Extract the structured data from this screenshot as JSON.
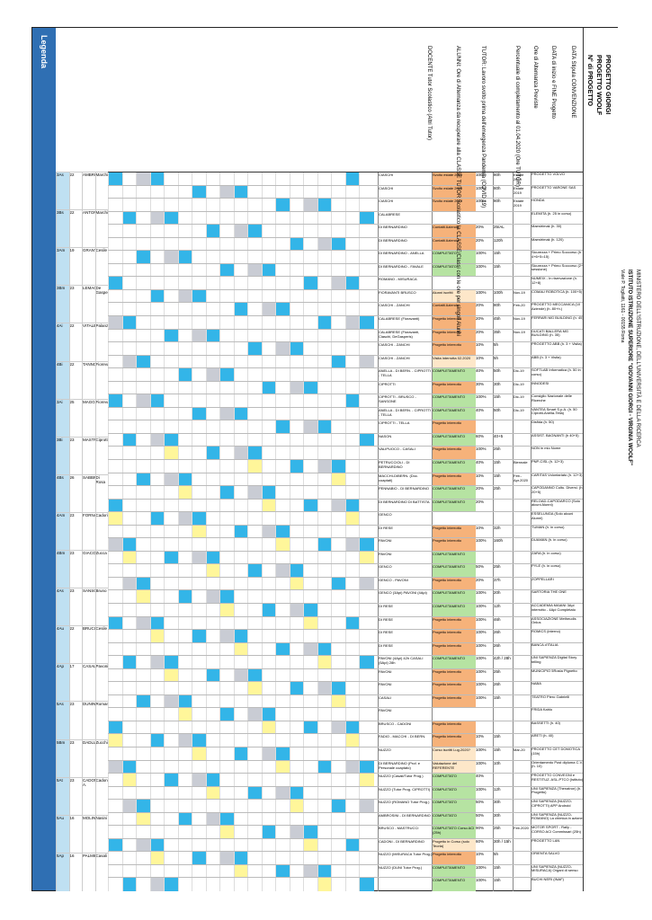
{
  "header": {
    "progetto_giorgi": "PROGETTO GIORGI",
    "progetto_woolf": "PROGETTO WOOLF",
    "n_progetto": "N° di PROGETTO",
    "data_stipula": "DATA Stipula CONVENZIONE",
    "data_inizio_fine": "DATA di inizio e FINE Progetto",
    "ore_previste": "Ore di Alternanza Previste",
    "percentuale": "Percentuale di completamento al 01.04.2020 (Ore TUTOR)",
    "tutor_lavoro": "TUTOR: Lavoro svolto prima dell'emergenza Pandemia (COVID 19)",
    "alunni": "ALUNNI: Ore di Alternanza da recuperare alla CLASSE TUTOR Scolastico la CLASSE/Classi con le ore per singoli Alunni",
    "docente_tutor": "DOCENTE Tutor Scolastico (Altri Tutor)"
  },
  "school": {
    "ministry": "MINISTERO DELL'ISTRUZIONE, DELL'UNIVERSITÀ E DELLA RICERCA",
    "name": "ISTITUTO ISTRUZIONE SUPERIORE \"GIOVANNI GIORGI - VIRGINIA WOOLF\"",
    "address": "Viale P. Togliatti, 1161 - 00155 Roma"
  },
  "legend": {
    "title": "Legenda",
    "items": [
      "= PROGETTO WOOLF",
      "= PROGETTI SETTORE",
      "= PROGETTO VEICOLO",
      "= PROGETTO ELETTR./MEC. informatica",
      "= PROGETTO COMPLETATO e/o IN COMPLETAMENTO",
      "= ORE da recuperare all'Alunno (Riduttivo dei TUTOR)"
    ]
  },
  "notes": {
    "aggiornamenti": "Aggiornamento al 20.05.2020",
    "riferimento": "RIFERENTE ASL PTCO prof. Bernardino DI BERNARDINO",
    "stato": "Stato: ore da recuperare all'Alunno al 05.03.2020"
  },
  "classes": [
    {
      "cls": "3As",
      "n": "22",
      "tutor": "AMBROSINO",
      "ore": "Marchi"
    },
    {
      "cls": "3Bs",
      "n": "22",
      "tutor": "ANTONOVO",
      "ore": "Marchi"
    },
    {
      "cls": "3Am",
      "n": "19",
      "tutor": "GRANTELLA",
      "ore": "Cesile"
    },
    {
      "cls": "3Bm",
      "n": "23",
      "tutor": "LEMAGNO",
      "ore": "De Gasperis"
    },
    {
      "cls": "4Ai",
      "n": "22",
      "tutor": "VITALE",
      "ore": "Palanza"
    },
    {
      "cls": "4Bi",
      "n": "22",
      "tutor": "TANNON",
      "ore": "Fiorevanti"
    },
    {
      "cls": "3Ai",
      "n": "25",
      "tutor": "MAGGI",
      "ore": "Fiorevanti"
    },
    {
      "cls": "3Bi",
      "n": "23",
      "tutor": "MASTRUCCI",
      "ore": "Ciprotti"
    },
    {
      "cls": "4Bs",
      "n": "26",
      "tutor": "SABBIU",
      "ore": "Di Rosa"
    },
    {
      "cls": "4Am",
      "n": "23",
      "tutor": "FORNABI",
      "ore": "Cadori"
    },
    {
      "cls": "4Bm",
      "n": "23",
      "tutor": "GIACOBBI",
      "ore": "Zucca"
    },
    {
      "cls": "4As",
      "n": "23",
      "tutor": "SANSONE",
      "ore": "Bruno"
    },
    {
      "cls": "4Au",
      "n": "22",
      "tutor": "BRUCCO",
      "ore": "Cesile"
    },
    {
      "cls": "4Ap",
      "n": "17",
      "tutor": "CASALI",
      "ore": "Pavoni"
    },
    {
      "cls": "5As",
      "n": "23",
      "tutor": "DUNIN",
      "ore": "Romano"
    },
    {
      "cls": "5Bm",
      "n": "23",
      "tutor": "DADLIANNO",
      "ore": "Zucchi"
    },
    {
      "cls": "5At",
      "n": "23",
      "tutor": "CADONI A.",
      "ore": "Cadoni"
    },
    {
      "cls": "5Au",
      "n": "16",
      "tutor": "MOLINARI",
      "ore": "Nasini"
    },
    {
      "cls": "5Ap",
      "n": "16",
      "tutor": "PALMIERO",
      "ore": "Casali"
    }
  ],
  "projects": [
    {
      "num": "63",
      "name": "PROGETTO VOLVO",
      "tutor": "CIASCHI",
      "stato": "Svolto estate 2019",
      "pct": "100%",
      "ore": "80h",
      "date": "Estate 2019"
    },
    {
      "num": "64",
      "name": "PROGETTO VARONE SAS",
      "tutor": "CIASCHI",
      "stato": "Svolto estate 2019",
      "pct": "100%",
      "ore": "80h",
      "date": "Estate 2019"
    },
    {
      "num": "65",
      "name": "HONDA",
      "tutor": "CIASCHI",
      "stato": "Svolto estate 2019",
      "pct": "100%",
      "ore": "80h",
      "date": "Estate 2019"
    },
    {
      "num": "1",
      "name": "ELEMITA (h. 25 in corso)",
      "tutor": "CALABRESE",
      "stato": "",
      "pct": "",
      "ore": "",
      "date": ""
    },
    {
      "num": "2",
      "name": "Maestrimak (h. 30)",
      "tutor": "DI BERNARDINO",
      "stato": "Contatti Azienda",
      "pct": "20%",
      "ore": "25/AL",
      "date": ""
    },
    {
      "num": "2a",
      "name": "Maestrimak (h. 120)",
      "tutor": "DI BERNARDINO",
      "stato": "Contatti Azienda",
      "pct": "20%",
      "ore": "120h",
      "date": ""
    },
    {
      "num": "3",
      "name": "Sicurezza + Primo Soccorso (h. 4+6+5=15)",
      "tutor": "DI BERNARDINO - ANELLA",
      "stato": "COMPLETATO",
      "pct": "100%",
      "ore": "15h",
      "date": ""
    },
    {
      "num": "3a",
      "name": "Sicurezza + Primo Soccorso (2^ sessione)",
      "tutor": "DI BERNARDINO - FAVALE",
      "stato": "COMPLETATO",
      "pct": "100%",
      "ore": "15h",
      "date": ""
    },
    {
      "num": "4",
      "name": "NUMEIX - In riservazione (h. 12+8)",
      "tutor": "ROMANO - MISURACA",
      "stato": "",
      "pct": "",
      "ore": "",
      "date": ""
    },
    {
      "num": "5",
      "name": "COMAU ROBOTICA (h. 100+5)",
      "tutor": "FIORAVANTI BRUSCO",
      "stato": "Alunni iscritti",
      "pct": "100%",
      "ore": "100h",
      "date": "Nov-19"
    },
    {
      "num": "6",
      "name": "PROGETTO MECCANICA (10 Aziende) (h. 80+h.)",
      "tutor": "CIASCHI - ZANCHI",
      "stato": "Contatti Azienda",
      "pct": "20%",
      "ore": "80h",
      "date": "Feb-20"
    },
    {
      "num": "7",
      "name": "FERRARI MG BUILDING (h. 45)",
      "tutor": "CALABRESE (Fioravanti)",
      "stato": "Progetto interrotto",
      "pct": "20%",
      "ore": "45h",
      "date": "Nov-19"
    },
    {
      "num": "8",
      "name": "DUCATI BALLERA MG BUILDING (h. 35)",
      "tutor": "CALABRESE (Fioravanti, Ciaschi, DeGasperis)",
      "stato": "Progetto interrotto",
      "pct": "20%",
      "ore": "35h",
      "date": "Nov-19"
    },
    {
      "num": "9",
      "name": "PROGETTO ABB (h. 3 + Visita)",
      "tutor": "CIASCHI - ZANCHI",
      "stato": "Progetto interrotto",
      "pct": "10%",
      "ore": "5h",
      "date": ""
    },
    {
      "num": "10",
      "name": "ABB (h. 3 + Visita)",
      "tutor": "CIASCHI - ZANCHI",
      "stato": "Visita interrotta 02.2020",
      "pct": "10%",
      "ore": "5h",
      "date": ""
    },
    {
      "num": "11",
      "name": "SOFTLAB Informatica (h. 50 in corso)",
      "tutor": "ANELLA - DI BERN. - CIPROTTI - TELLA",
      "stato": "COMPLETAMENTO",
      "pct": "40%",
      "ore": "50h",
      "date": "Dic-19"
    },
    {
      "num": "12",
      "name": "INNODESI",
      "tutor": "CIPROTTI",
      "stato": "Progetto interrotto",
      "pct": "30%",
      "ore": "30h",
      "date": "Dic-19"
    },
    {
      "num": "13",
      "name": "Consiglio Nazionale delle Ricerche",
      "tutor": "CIPROTTI - BRUSCO - SANSONE",
      "stato": "COMPLETAMENTO",
      "pct": "100%",
      "ore": "15h",
      "date": "Dic-19"
    },
    {
      "num": "14",
      "name": "VANTEA Smart S.p.A. (h. 50 Ciprotti-Anella-Tella)",
      "tutor": "ANELLA - DI BERN. - CIPROTTI - TELLA",
      "stato": "COMPLETAMENTO",
      "pct": "40%",
      "ore": "50h",
      "date": "Dic-19"
    },
    {
      "num": "15",
      "name": "Disfida (h. 50)",
      "tutor": "CIPROTTI - TELLA",
      "stato": "Progetto interrotto",
      "pct": "",
      "ore": "",
      "date": ""
    },
    {
      "num": "16",
      "name": "ASSIST. BAGNANTI (h 40+5)",
      "tutor": "NASON",
      "stato": "COMPLETAMENTO",
      "pct": "60%",
      "ore": "40+5",
      "date": ""
    },
    {
      "num": "17",
      "name": "NON in mio Nome",
      "tutor": "VALIPUOCO - CASALI",
      "stato": "Progetto interrotto",
      "pct": "100%",
      "ore": "25h",
      "date": ""
    },
    {
      "num": "18",
      "name": "PNP-CISL (h. 12+3)",
      "tutor": "PETRUCCIOLI - DI BERNARDINO",
      "stato": "COMPLETAMENTO",
      "pct": "40%",
      "ore": "15h",
      "date": "Biennale"
    },
    {
      "num": "19",
      "name": "CARITAS Volontariato (h. 12+3)",
      "tutor": "MACCHI-DIBERN. (Doc. coaptati)",
      "stato": "Progetto interrotto",
      "pct": "10%",
      "ore": "15h",
      "date": "Feb.-Apr.2020"
    },
    {
      "num": "20",
      "name": "CAPODANNO Cultu. Diversi. (h. 20+5)",
      "tutor": "PENNABIO - DI BERNARDINO",
      "stato": "COMPLETAMENTO",
      "pct": "20%",
      "ore": "25h",
      "date": ""
    },
    {
      "num": "21",
      "name": "RELOAD-CAPODARCO (Solo alcuni Alunni)",
      "tutor": "DI BERNARDINO DI BATTISTA",
      "stato": "COMPLETAMENTO",
      "pct": "20%",
      "ore": "",
      "date": ""
    },
    {
      "num": "22",
      "name": "ESSELUNGA (Solo alcuni Alunni)",
      "tutor": "GENCO",
      "stato": "",
      "pct": "",
      "ore": "",
      "date": ""
    },
    {
      "num": "23",
      "name": "TUMAN (h. in corso)",
      "tutor": "DI RESE",
      "stato": "Progetto interrotto",
      "pct": "10%",
      "ore": "32h",
      "date": ""
    },
    {
      "num": "24",
      "name": "DUAMAN (h. in corso)",
      "tutor": "PAVONI",
      "stato": "Progetto interrotto",
      "pct": "100%",
      "ore": "160h",
      "date": ""
    },
    {
      "num": "25",
      "name": "ZARA (h. in corso)",
      "tutor": "PAVONI",
      "stato": "COMPLETAMENTO",
      "pct": "",
      "ore": "",
      "date": ""
    },
    {
      "num": "26",
      "name": "PYLE (h. in corso)",
      "tutor": "GENCO",
      "stato": "COMPLETAMENTO",
      "pct": "50%",
      "ore": "25h",
      "date": ""
    },
    {
      "num": "27",
      "name": "ZOPPELLARI",
      "tutor": "GENCO - PAVONI",
      "stato": "Progetto interrotto",
      "pct": "20%",
      "ore": "37h",
      "date": ""
    },
    {
      "num": "28",
      "name": "SARTORIA THE ONE",
      "tutor": "GENCO (3Api) PAVONI (4Api)",
      "stato": "COMPLETAMENTO",
      "pct": "100%",
      "ore": "20h",
      "date": ""
    },
    {
      "num": "29",
      "name": "ACCADEMIA MAIANI 3Api interrotto - 4Api Completato",
      "tutor": "DI RESE",
      "stato": "COMPLETAMENTO",
      "pct": "100%",
      "ore": "12h",
      "date": ""
    },
    {
      "num": "30",
      "name": "ASSOCIAZIONE Metheudis Onlus",
      "tutor": "DI RESE",
      "stato": "Progetto interrotto",
      "pct": "100%",
      "ore": "46h",
      "date": ""
    },
    {
      "num": "31",
      "name": "ROMICS (interno)",
      "tutor": "DI RESE",
      "stato": "Progetto interrotto",
      "pct": "100%",
      "ore": "26h",
      "date": ""
    },
    {
      "num": "32",
      "name": "BANCA d'ITALIA",
      "tutor": "DI RESE",
      "stato": "Progetto interrotto",
      "pct": "100%",
      "ore": "26h",
      "date": ""
    },
    {
      "num": "33",
      "name": "UNI SAPIENZA Digital Story telling",
      "tutor": "PAVONI (4Api) 42h CASALI (5Api) 28h",
      "stato": "COMPLETAMENTO",
      "pct": "100%",
      "ore": "42h / 28h",
      "date": ""
    },
    {
      "num": "34",
      "name": "MUNICIPIO 5Rosta Pignetto",
      "tutor": "PAVONI",
      "stato": "Progetto interrotto",
      "pct": "100%",
      "ore": "25h",
      "date": ""
    },
    {
      "num": "35",
      "name": "NABA",
      "tutor": "PAVONI",
      "stato": "Progetto interrotto",
      "pct": "100%",
      "ore": "26h",
      "date": ""
    },
    {
      "num": "36",
      "name": "TEATRO Piero Gabrielli",
      "tutor": "CASALI",
      "stato": "Progetto interrotto",
      "pct": "100%",
      "ore": "15h",
      "date": ""
    },
    {
      "num": "37",
      "name": "FRIDA Kahlo",
      "tutor": "PAVONI",
      "stato": "",
      "pct": "",
      "ore": "",
      "date": ""
    },
    {
      "num": "38",
      "name": "BASSETTI (h. 40)",
      "tutor": "BRUSCO - CADONI",
      "stato": "Progetto interrotto",
      "pct": "",
      "ore": "",
      "date": ""
    },
    {
      "num": "39",
      "name": "ARETI (h. 40)",
      "tutor": "FADIO - MACCHI - DI BERN.",
      "stato": "Progetto interrotto",
      "pct": "10%",
      "ore": "15h",
      "date": ""
    },
    {
      "num": "40",
      "name": "PROGETTO CET DOMOTICA (15h)",
      "tutor": "NUZZO",
      "stato": "Corso iscritti Lug.2020?",
      "pct": "100%",
      "ore": "15h",
      "date": "Mar-20"
    },
    {
      "num": "41",
      "name": "Orientamento Post diploma C.V. (h. 10)",
      "tutor": "DI BERNARDINO (Prof. e Personale coaptato)",
      "stato": "Valutazione del REFERENTE",
      "pct": "100%",
      "ore": "10h",
      "date": ""
    },
    {
      "num": "42",
      "name": "PROGETTO CONVEGNI e RESTITUZ. ASL-PTCO (Istituto)",
      "tutor": "NUZZO (Casali/Tutor Prog.)",
      "stato": "COMPLETATO",
      "pct": "40%",
      "ore": "",
      "date": ""
    },
    {
      "num": "43",
      "name": "UNI SAPIENZA (Thenatron) (h. Progetto)",
      "tutor": "NUZZO (Tutor Prog. CIPROTTI)",
      "stato": "COMPLETATO",
      "pct": "100%",
      "ore": "12h",
      "date": ""
    },
    {
      "num": "44",
      "name": "UNI SAPIENZA (NUZZO-CIPROTTI) APP Android",
      "tutor": "NUZZO (ROMANO Tutor Prog.)",
      "stato": "COMPLETATO",
      "pct": "50%",
      "ore": "30h",
      "date": ""
    },
    {
      "num": "45",
      "name": "UNI SAPIENZA (NUZZO-ROMANO) La chimica in azione",
      "tutor": "AMBROSINI - DI BERNARDINO",
      "stato": "COMPLETATO",
      "pct": "50%",
      "ore": "30h",
      "date": ""
    },
    {
      "num": "46",
      "name": "MOTOR SPORT - Rally -CORSO ACI Commissari (25h)",
      "tutor": "BRUSCO - MASTRUCCI",
      "stato": "COMPLETATO Corso ACI (25h)",
      "pct": "90%",
      "ore": "25h",
      "date": "Feb.2020"
    },
    {
      "num": "47",
      "name": "PROGETTO LAN",
      "tutor": "CADONI - DI BERNARDINO",
      "stato": "Progetto in Corso (solo Teoria)",
      "pct": "60%",
      "ore": "30h / 15h",
      "date": ""
    },
    {
      "num": "48",
      "name": "ORIENTA SALVO",
      "tutor": "NUZZO (MISURACA Tutor Prog.)",
      "stato": "Progetto interrotto",
      "pct": "10%",
      "ore": "5h",
      "date": ""
    },
    {
      "num": "49",
      "name": "UNI SAPIENZA (NUZZO-MISURACA) Organi di senso",
      "tutor": "NUZZO (DUNI Tutor Prog.)",
      "stato": "COMPLETAMENTO",
      "pct": "100%",
      "ore": "15h",
      "date": ""
    },
    {
      "num": "50",
      "name": "BUCHI NERI (INAF)",
      "tutor": "",
      "stato": "COMPLETAMENTO",
      "pct": "100%",
      "ore": "15h",
      "date": ""
    }
  ]
}
